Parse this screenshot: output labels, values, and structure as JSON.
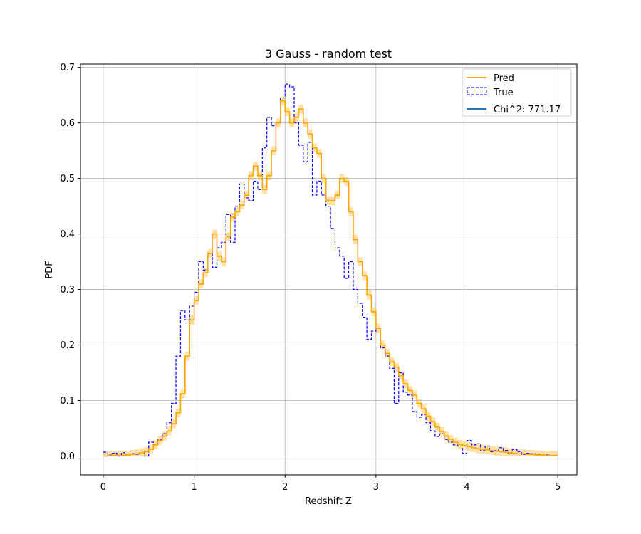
{
  "chart_data": {
    "type": "line",
    "title": "3 Gauss - random test",
    "xlabel": "Redshift Z",
    "ylabel": "PDF",
    "xlim": [
      -0.25,
      5.21
    ],
    "ylim": [
      -0.034,
      0.706
    ],
    "xticks": [
      "0",
      "1",
      "2",
      "3",
      "4",
      "5"
    ],
    "yticks": [
      "0.0",
      "0.1",
      "0.2",
      "0.3",
      "0.4",
      "0.5",
      "0.6",
      "0.7"
    ],
    "grid": true,
    "legend_position": "top-right",
    "bin_width": 0.05,
    "x_start": 0.0,
    "series": [
      {
        "name": "Pred",
        "style": "step",
        "color": "#ffa500",
        "band_color": "#ffa500",
        "band_halfwidth": 0.008,
        "values": [
          0.0,
          0.001,
          0.001,
          0.001,
          0.001,
          0.002,
          0.003,
          0.004,
          0.006,
          0.008,
          0.012,
          0.02,
          0.028,
          0.036,
          0.045,
          0.058,
          0.078,
          0.112,
          0.18,
          0.245,
          0.28,
          0.31,
          0.33,
          0.365,
          0.4,
          0.36,
          0.35,
          0.395,
          0.43,
          0.44,
          0.452,
          0.47,
          0.505,
          0.522,
          0.505,
          0.48,
          0.505,
          0.55,
          0.6,
          0.64,
          0.62,
          0.6,
          0.61,
          0.625,
          0.6,
          0.58,
          0.555,
          0.545,
          0.5,
          0.46,
          0.46,
          0.47,
          0.5,
          0.495,
          0.44,
          0.39,
          0.35,
          0.325,
          0.29,
          0.26,
          0.23,
          0.2,
          0.185,
          0.17,
          0.16,
          0.145,
          0.13,
          0.118,
          0.11,
          0.095,
          0.085,
          0.072,
          0.062,
          0.052,
          0.044,
          0.036,
          0.03,
          0.025,
          0.021,
          0.019,
          0.017,
          0.015,
          0.013,
          0.012,
          0.011,
          0.01,
          0.009,
          0.008,
          0.007,
          0.006,
          0.005,
          0.004,
          0.004,
          0.003,
          0.003,
          0.002,
          0.002,
          0.001,
          0.001,
          0.001
        ]
      },
      {
        "name": "True",
        "style": "step-dashed",
        "color": "#0000ff",
        "values": [
          0.007,
          0.002,
          0.005,
          0.0,
          0.006,
          0.002,
          0.004,
          0.003,
          0.006,
          0.0,
          0.025,
          0.02,
          0.03,
          0.04,
          0.06,
          0.095,
          0.18,
          0.262,
          0.245,
          0.27,
          0.295,
          0.35,
          0.335,
          0.365,
          0.34,
          0.375,
          0.385,
          0.435,
          0.385,
          0.45,
          0.49,
          0.465,
          0.46,
          0.495,
          0.48,
          0.555,
          0.61,
          0.595,
          0.6,
          0.645,
          0.67,
          0.665,
          0.6,
          0.56,
          0.53,
          0.565,
          0.47,
          0.495,
          0.47,
          0.45,
          0.41,
          0.375,
          0.36,
          0.32,
          0.35,
          0.3,
          0.275,
          0.25,
          0.21,
          0.225,
          0.23,
          0.195,
          0.18,
          0.158,
          0.095,
          0.15,
          0.115,
          0.11,
          0.08,
          0.07,
          0.075,
          0.06,
          0.045,
          0.035,
          0.04,
          0.03,
          0.025,
          0.02,
          0.018,
          0.005,
          0.028,
          0.02,
          0.022,
          0.01,
          0.018,
          0.008,
          0.01,
          0.015,
          0.01,
          0.005,
          0.012,
          0.008,
          0.003,
          0.005,
          0.004,
          0.003,
          0.002,
          0.002,
          0.001,
          0.001
        ]
      }
    ],
    "legend_entries": [
      {
        "label": "Pred",
        "kind": "line",
        "color": "#ffa500"
      },
      {
        "label": "True",
        "kind": "dashed-box",
        "color": "#0000ff"
      },
      {
        "label": "Chi^2: 771.17",
        "kind": "line",
        "color": "#1f77b4"
      }
    ]
  }
}
